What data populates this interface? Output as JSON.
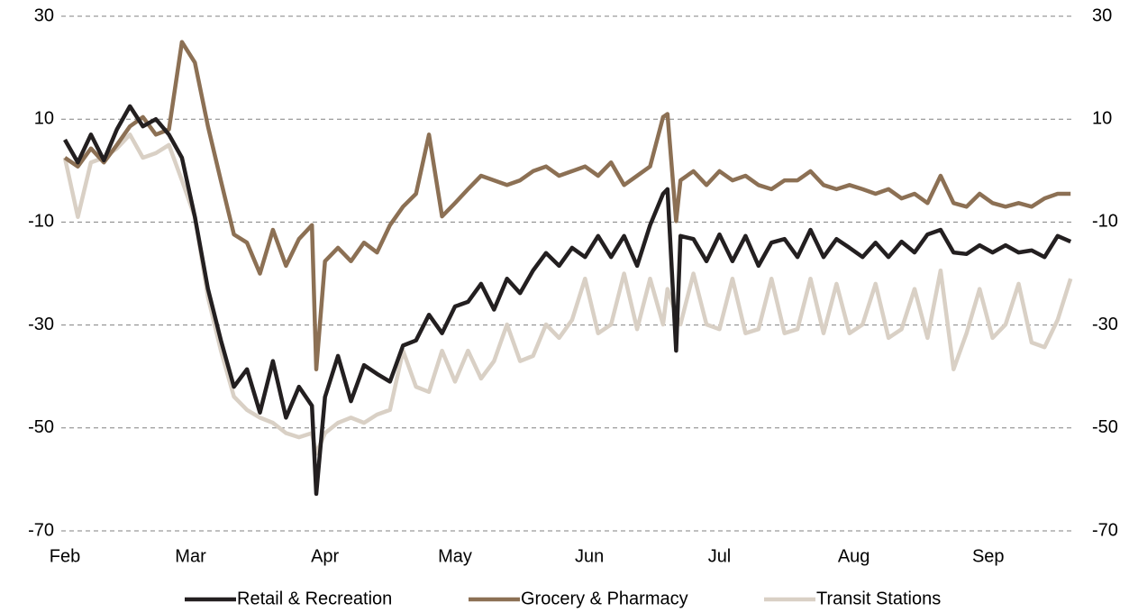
{
  "chart_data": {
    "type": "line",
    "x": [
      0,
      3,
      6,
      9,
      12,
      15,
      18,
      21,
      24,
      27,
      30,
      33,
      36,
      39,
      42,
      45,
      48,
      51,
      54,
      57,
      58,
      60,
      63,
      66,
      69,
      72,
      75,
      78,
      81,
      84,
      87,
      90,
      93,
      96,
      99,
      102,
      105,
      108,
      111,
      114,
      117,
      120,
      123,
      126,
      129,
      132,
      135,
      138,
      139,
      141,
      142,
      145,
      148,
      151,
      154,
      157,
      160,
      163,
      166,
      169,
      172,
      175,
      178,
      181,
      184,
      187,
      190,
      193,
      196,
      199,
      202,
      205,
      208,
      211,
      214,
      217,
      220,
      223,
      226,
      229,
      232
    ],
    "xlim": [
      0,
      233
    ],
    "xticks": [
      {
        "value": 0,
        "label": "Feb"
      },
      {
        "value": 29,
        "label": "Mar"
      },
      {
        "value": 60,
        "label": "Apr"
      },
      {
        "value": 90,
        "label": "May"
      },
      {
        "value": 121,
        "label": "Jun"
      },
      {
        "value": 151,
        "label": "Jul"
      },
      {
        "value": 182,
        "label": "Aug"
      },
      {
        "value": 213,
        "label": "Sep"
      }
    ],
    "ylim": [
      -70,
      30
    ],
    "yticks": [
      -70,
      -50,
      -30,
      -10,
      10,
      30
    ],
    "grid": true,
    "legend": "bottom",
    "series": [
      {
        "name": "Retail & Recreation",
        "color": "#231f20",
        "values": [
          6,
          1.6,
          7,
          2,
          8,
          12.5,
          8.6,
          10,
          7,
          2.5,
          -9,
          -23,
          -33,
          -42,
          -38.6,
          -47,
          -37,
          -48,
          -42,
          -45.7,
          -62.8,
          -44,
          -36,
          -44.8,
          -37.8,
          -39.5,
          -41,
          -34,
          -33,
          -28,
          -31.6,
          -26.4,
          -25.5,
          -22,
          -27,
          -21,
          -23.8,
          -19.4,
          -16,
          -18.5,
          -15,
          -16.8,
          -12.7,
          -16.8,
          -12.7,
          -18.5,
          -10.6,
          -4.5,
          -3.6,
          -35,
          -12.7,
          -13.3,
          -17.6,
          -12.4,
          -17.6,
          -12.7,
          -18.5,
          -14,
          -13.3,
          -16.8,
          -11.5,
          -16.8,
          -13.3,
          -15,
          -16.8,
          -14,
          -16.8,
          -13.8,
          -15.9,
          -12.4,
          -11.5,
          -15.9,
          -16.2,
          -14.5,
          -15.9,
          -14.5,
          -15.9,
          -15.5,
          -16.8,
          -12.7,
          -13.8
        ]
      },
      {
        "name": "Grocery & Pharmacy",
        "color": "#8c7054",
        "values": [
          2.5,
          0.8,
          4.3,
          1.6,
          5,
          8.6,
          10.4,
          7,
          8,
          25,
          21,
          8.6,
          -2,
          -12.4,
          -14,
          -20,
          -11.5,
          -18.5,
          -13.3,
          -10.6,
          -38.6,
          -17.6,
          -15,
          -17.6,
          -14,
          -15.9,
          -10.6,
          -7,
          -4.5,
          7,
          -8.9,
          -6.3,
          -3.6,
          -1,
          -1.9,
          -2.8,
          -1.9,
          -0.1,
          0.8,
          -1,
          -0.1,
          0.8,
          -1,
          1.6,
          -2.8,
          -1,
          0.8,
          10.4,
          11,
          -9.8,
          -1.9,
          -0.1,
          -2.8,
          -0.1,
          -1.9,
          -1,
          -2.8,
          -3.6,
          -1.9,
          -1.9,
          -0.1,
          -2.8,
          -3.6,
          -2.8,
          -3.6,
          -4.5,
          -3.6,
          -5.4,
          -4.5,
          -6.3,
          -1,
          -6.3,
          -7,
          -4.5,
          -6.3,
          -7,
          -6.3,
          -7,
          -5.4,
          -4.5,
          -4.5
        ]
      },
      {
        "name": "Transit Stations",
        "color": "#d9d0c5",
        "values": [
          2.5,
          -9,
          1.6,
          2.5,
          4.3,
          7,
          2.5,
          3.4,
          5,
          -1.9,
          -9,
          -24.6,
          -35,
          -43.9,
          -46.5,
          -48,
          -49,
          -51,
          -51.8,
          -51,
          -55,
          -51,
          -49,
          -48,
          -49,
          -47.4,
          -46.5,
          -35,
          -42,
          -43,
          -35,
          -41,
          -35,
          -40.4,
          -37,
          -29.9,
          -37,
          -36,
          -29.9,
          -32.5,
          -29,
          -21,
          -31.6,
          -29.9,
          -20,
          -30.8,
          -21,
          -29.9,
          -23,
          -28,
          -29.9,
          -20,
          -29.9,
          -30.8,
          -21,
          -31.6,
          -30.8,
          -21,
          -31.6,
          -30.8,
          -21,
          -31.6,
          -22,
          -31.6,
          -29.9,
          -22,
          -32.5,
          -30.8,
          -23,
          -32.5,
          -19.4,
          -38.6,
          -31.6,
          -23,
          -32.5,
          -29.9,
          -22,
          -33.4,
          -34.3,
          -29,
          -21
        ]
      }
    ]
  }
}
